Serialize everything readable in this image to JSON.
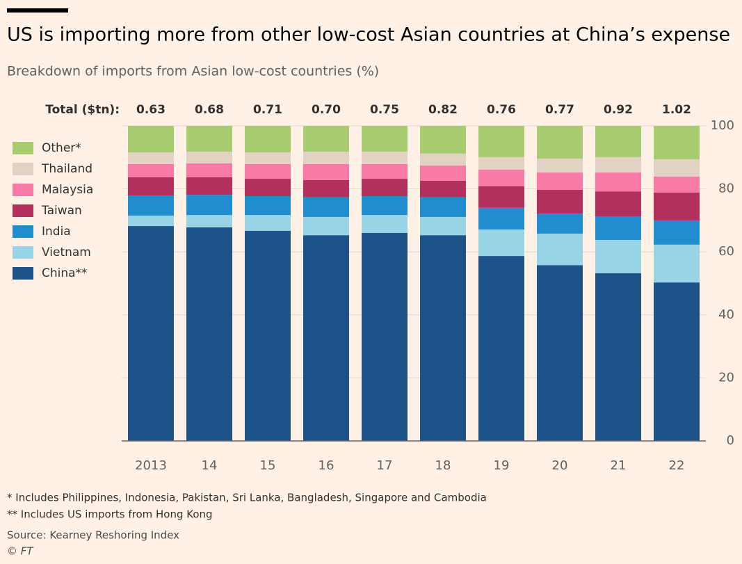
{
  "chart_data": {
    "type": "stacked-bar",
    "title": "US is importing more from other low-cost Asian countries at China’s expense",
    "subtitle": "Breakdown of imports from Asian low-cost countries (%)",
    "categories": [
      "2013",
      "14",
      "15",
      "16",
      "17",
      "18",
      "19",
      "20",
      "21",
      "22"
    ],
    "totals": {
      "label": "Total ($tn):",
      "values": [
        0.63,
        0.68,
        0.71,
        0.7,
        0.75,
        0.82,
        0.76,
        0.77,
        0.92,
        1.02
      ],
      "value_labels": [
        "0.63",
        "0.68",
        "0.71",
        "0.70",
        "0.75",
        "0.82",
        "0.76",
        "0.77",
        "0.92",
        "1.02"
      ]
    },
    "series": [
      {
        "name": "China**",
        "color": "#1e528b",
        "values": [
          68.2,
          67.8,
          66.7,
          65.3,
          66.0,
          65.3,
          58.7,
          55.8,
          53.2,
          50.3
        ]
      },
      {
        "name": "Vietnam",
        "color": "#98d3e6",
        "values": [
          3.3,
          3.9,
          5.0,
          5.8,
          5.7,
          5.8,
          8.4,
          10.0,
          10.6,
          12.0
        ]
      },
      {
        "name": "India",
        "color": "#208dcf",
        "values": [
          6.4,
          6.4,
          6.0,
          6.2,
          6.0,
          6.2,
          6.9,
          6.4,
          7.5,
          7.7
        ]
      },
      {
        "name": "Taiwan",
        "color": "#b1305d",
        "values": [
          5.8,
          5.6,
          5.5,
          5.5,
          5.5,
          5.3,
          6.8,
          7.5,
          7.9,
          8.8
        ]
      },
      {
        "name": "Malaysia",
        "color": "#f87ba7",
        "values": [
          4.2,
          4.4,
          4.7,
          5.1,
          4.7,
          4.8,
          5.3,
          5.5,
          6.0,
          5.1
        ]
      },
      {
        "name": "Thailand",
        "color": "#e2d2c4",
        "values": [
          3.7,
          3.7,
          3.7,
          3.9,
          3.9,
          3.8,
          4.0,
          4.4,
          4.9,
          5.5
        ]
      },
      {
        "name": "Other*",
        "color": "#a9cb70",
        "values": [
          8.4,
          8.2,
          8.4,
          8.2,
          8.2,
          8.8,
          9.9,
          10.4,
          9.9,
          10.6
        ]
      }
    ],
    "ylim": [
      0,
      100
    ],
    "yticks": [
      0,
      20,
      40,
      60,
      80,
      100
    ],
    "grid": true,
    "notes": [
      "* Includes Philippines, Indonesia, Pakistan, Sri Lanka, Bangladesh, Singapore and Cambodia",
      "** Includes US imports from Hong Kong"
    ],
    "source": "Source: Kearney Reshoring Index",
    "credit": "© FT"
  }
}
